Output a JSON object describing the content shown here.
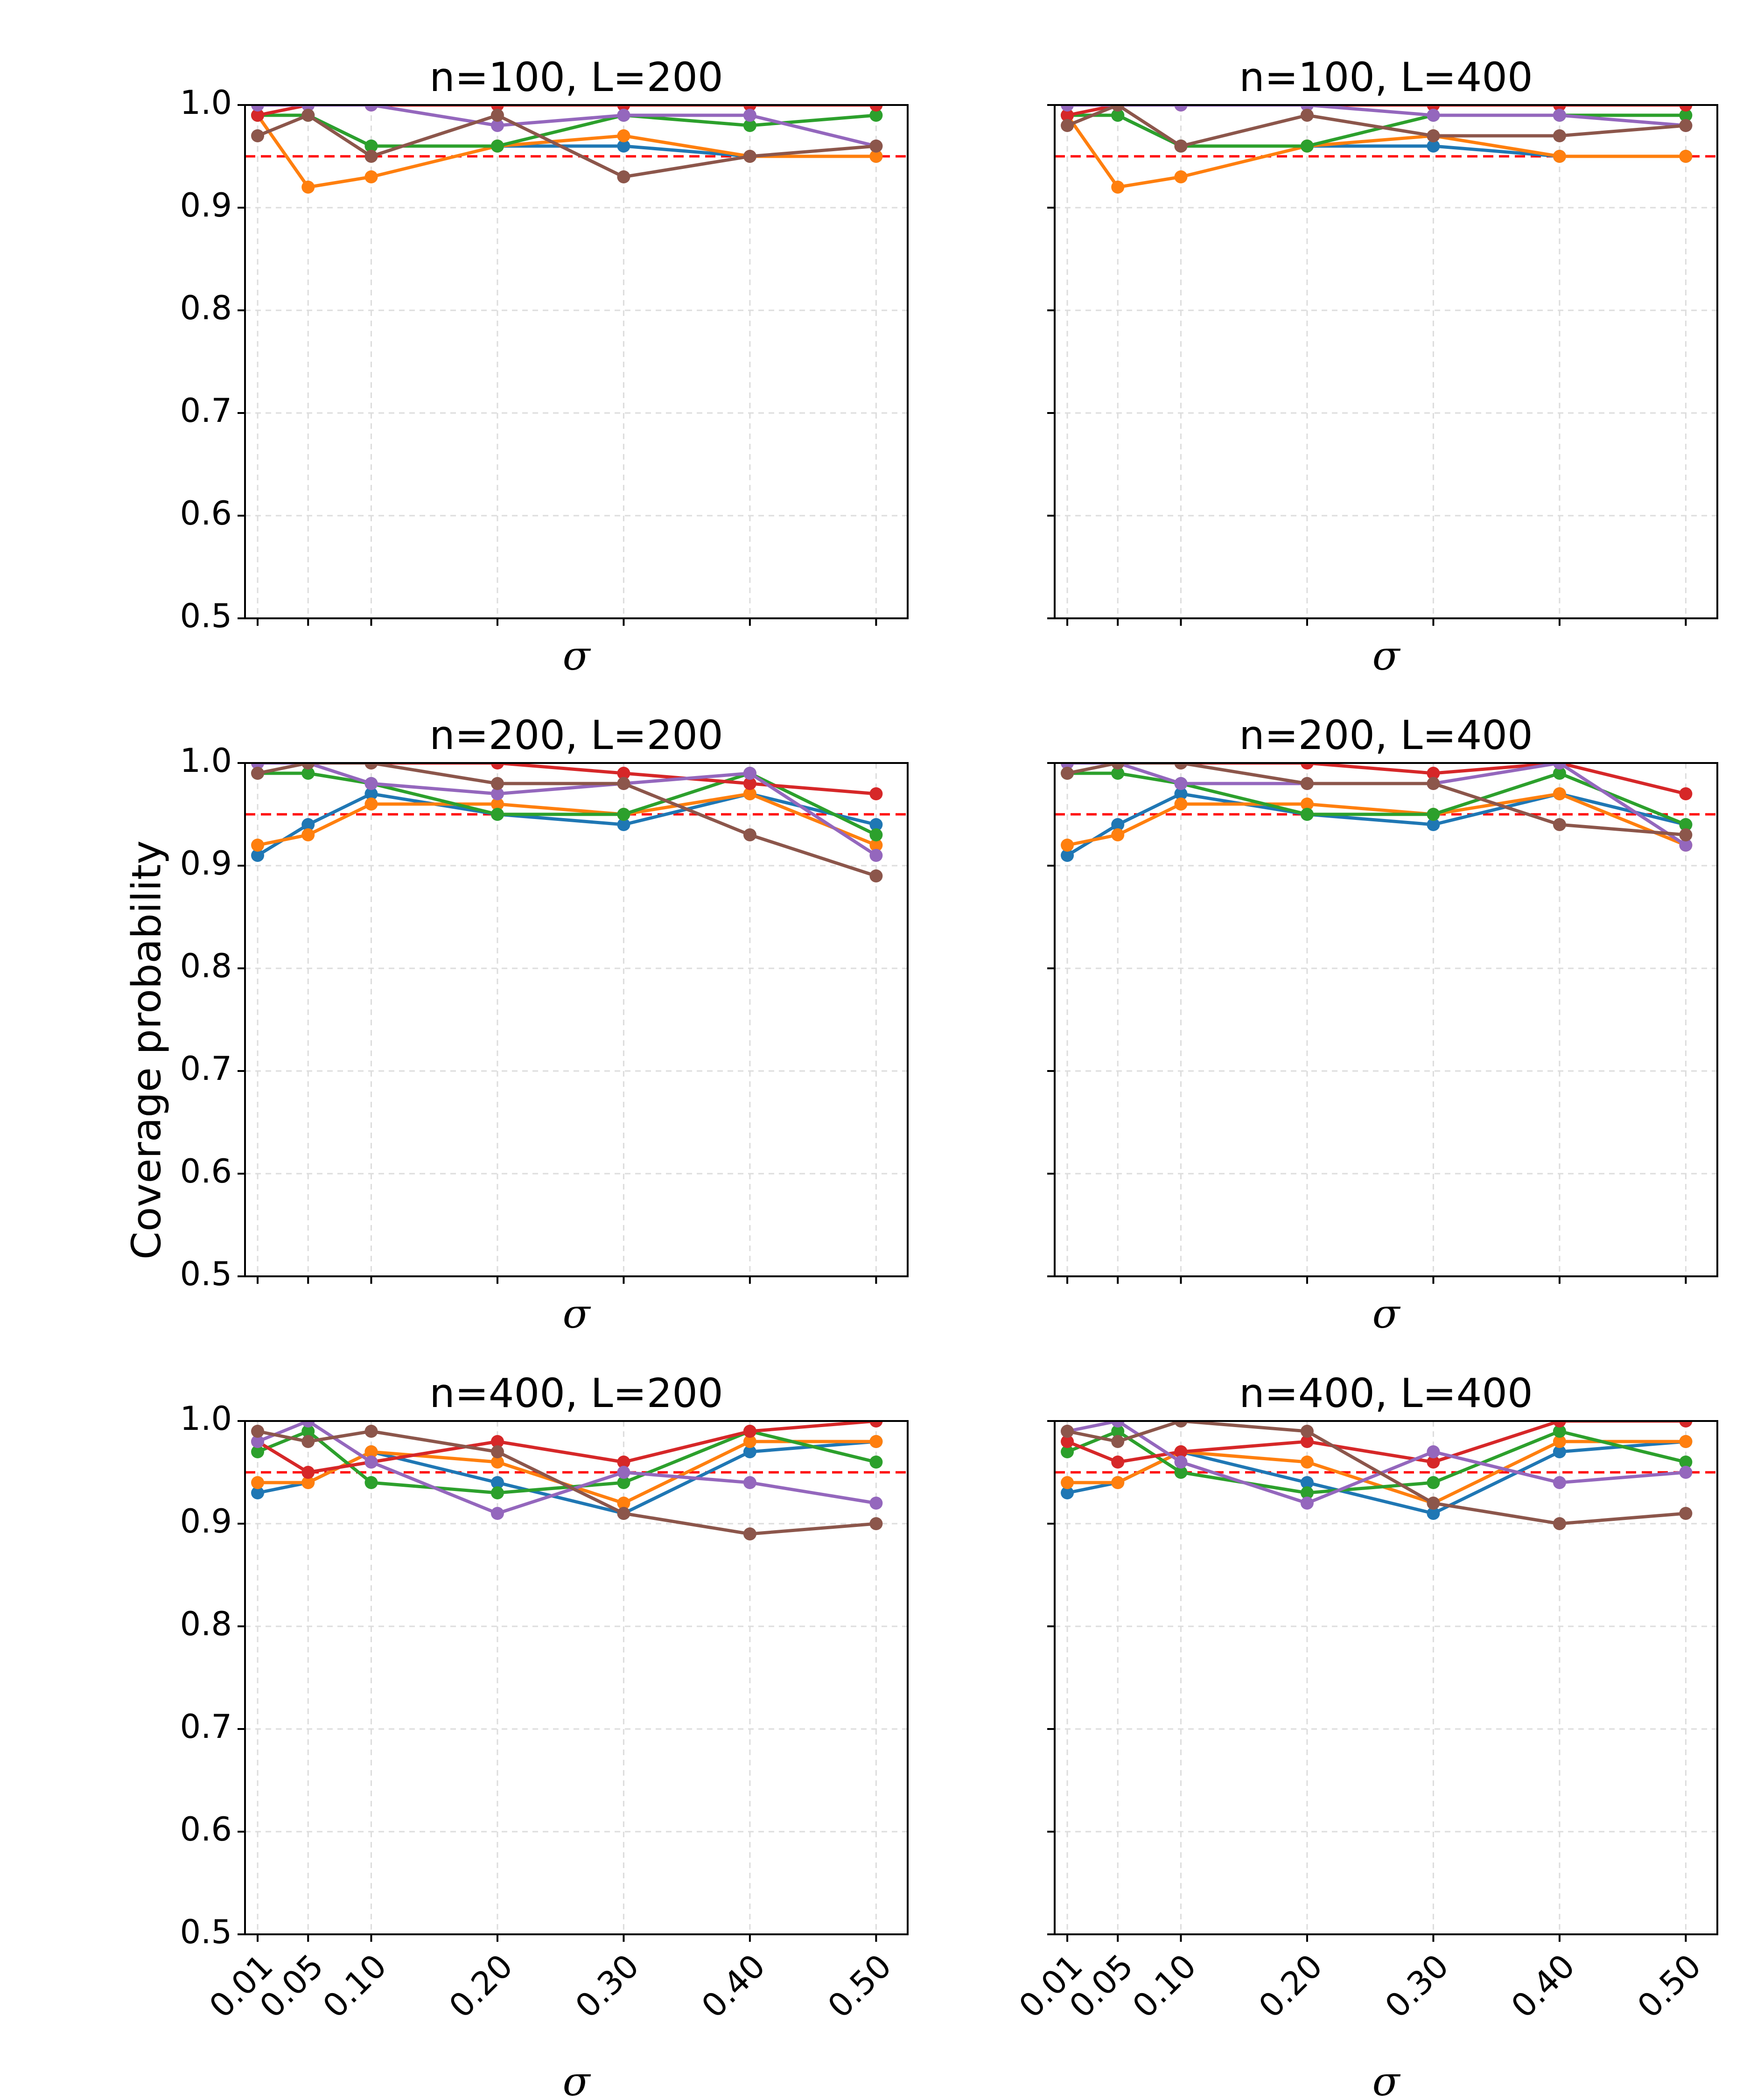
{
  "figure": {
    "ylabel": "Coverage probability"
  },
  "chart_data": [
    {
      "type": "line",
      "title": "n=100, L=200",
      "xlabel": "σ",
      "ylim": [
        0.5,
        1.0
      ],
      "x": [
        0.01,
        0.05,
        0.1,
        0.2,
        0.3,
        0.4,
        0.5
      ],
      "x_tick_labels": [],
      "y_tick_labels": [
        "0.5",
        "0.6",
        "0.7",
        "0.8",
        "0.9",
        "1.0"
      ],
      "reference_line": 0.95,
      "grid": true,
      "series": [
        {
          "name": "series-1",
          "color": "#1f77b4",
          "values": [
            0.99,
            0.99,
            0.96,
            0.96,
            0.96,
            0.95,
            0.95
          ]
        },
        {
          "name": "series-2",
          "color": "#ff7f0e",
          "values": [
            0.99,
            0.92,
            0.93,
            0.96,
            0.97,
            0.95,
            0.95
          ]
        },
        {
          "name": "series-3",
          "color": "#2ca02c",
          "values": [
            0.99,
            0.99,
            0.96,
            0.96,
            0.99,
            0.98,
            0.99
          ]
        },
        {
          "name": "series-4",
          "color": "#d62728",
          "values": [
            0.99,
            1.0,
            1.0,
            1.0,
            1.0,
            1.0,
            1.0
          ]
        },
        {
          "name": "series-5",
          "color": "#9467bd",
          "values": [
            1.0,
            1.0,
            1.0,
            0.98,
            0.99,
            0.99,
            0.96
          ]
        },
        {
          "name": "series-6",
          "color": "#8c564b",
          "values": [
            0.97,
            0.99,
            0.95,
            0.99,
            0.93,
            0.95,
            0.96
          ]
        }
      ]
    },
    {
      "type": "line",
      "title": "n=100, L=400",
      "xlabel": "σ",
      "ylim": [
        0.5,
        1.0
      ],
      "x": [
        0.01,
        0.05,
        0.1,
        0.2,
        0.3,
        0.4,
        0.5
      ],
      "x_tick_labels": [],
      "y_tick_labels": [],
      "reference_line": 0.95,
      "grid": true,
      "series": [
        {
          "name": "series-1",
          "color": "#1f77b4",
          "values": [
            0.99,
            0.99,
            0.96,
            0.96,
            0.96,
            0.95,
            0.95
          ]
        },
        {
          "name": "series-2",
          "color": "#ff7f0e",
          "values": [
            0.99,
            0.92,
            0.93,
            0.96,
            0.97,
            0.95,
            0.95
          ]
        },
        {
          "name": "series-3",
          "color": "#2ca02c",
          "values": [
            0.99,
            0.99,
            0.96,
            0.96,
            0.99,
            0.99,
            0.99
          ]
        },
        {
          "name": "series-4",
          "color": "#d62728",
          "values": [
            0.99,
            1.0,
            1.0,
            1.0,
            1.0,
            1.0,
            1.0
          ]
        },
        {
          "name": "series-5",
          "color": "#9467bd",
          "values": [
            1.0,
            1.0,
            1.0,
            1.0,
            0.99,
            0.99,
            0.98
          ]
        },
        {
          "name": "series-6",
          "color": "#8c564b",
          "values": [
            0.98,
            1.0,
            0.96,
            0.99,
            0.97,
            0.97,
            0.98
          ]
        }
      ]
    },
    {
      "type": "line",
      "title": "n=200, L=200",
      "xlabel": "σ",
      "ylim": [
        0.5,
        1.0
      ],
      "x": [
        0.01,
        0.05,
        0.1,
        0.2,
        0.3,
        0.4,
        0.5
      ],
      "x_tick_labels": [],
      "y_tick_labels": [
        "0.5",
        "0.6",
        "0.7",
        "0.8",
        "0.9",
        "1.0"
      ],
      "reference_line": 0.95,
      "grid": true,
      "series": [
        {
          "name": "series-1",
          "color": "#1f77b4",
          "values": [
            0.91,
            0.94,
            0.97,
            0.95,
            0.94,
            0.97,
            0.94
          ]
        },
        {
          "name": "series-2",
          "color": "#ff7f0e",
          "values": [
            0.92,
            0.93,
            0.96,
            0.96,
            0.95,
            0.97,
            0.92
          ]
        },
        {
          "name": "series-3",
          "color": "#2ca02c",
          "values": [
            0.99,
            0.99,
            0.98,
            0.95,
            0.95,
            0.99,
            0.93
          ]
        },
        {
          "name": "series-4",
          "color": "#d62728",
          "values": [
            1.0,
            1.0,
            1.0,
            1.0,
            0.99,
            0.98,
            0.97
          ]
        },
        {
          "name": "series-5",
          "color": "#9467bd",
          "values": [
            1.0,
            1.0,
            0.98,
            0.97,
            0.98,
            0.99,
            0.91
          ]
        },
        {
          "name": "series-6",
          "color": "#8c564b",
          "values": [
            0.99,
            1.0,
            1.0,
            0.98,
            0.98,
            0.93,
            0.89
          ]
        }
      ]
    },
    {
      "type": "line",
      "title": "n=200, L=400",
      "xlabel": "σ",
      "ylim": [
        0.5,
        1.0
      ],
      "x": [
        0.01,
        0.05,
        0.1,
        0.2,
        0.3,
        0.4,
        0.5
      ],
      "x_tick_labels": [],
      "y_tick_labels": [],
      "reference_line": 0.95,
      "grid": true,
      "series": [
        {
          "name": "series-1",
          "color": "#1f77b4",
          "values": [
            0.91,
            0.94,
            0.97,
            0.95,
            0.94,
            0.97,
            0.94
          ]
        },
        {
          "name": "series-2",
          "color": "#ff7f0e",
          "values": [
            0.92,
            0.93,
            0.96,
            0.96,
            0.95,
            0.97,
            0.92
          ]
        },
        {
          "name": "series-3",
          "color": "#2ca02c",
          "values": [
            0.99,
            0.99,
            0.98,
            0.95,
            0.95,
            0.99,
            0.94
          ]
        },
        {
          "name": "series-4",
          "color": "#d62728",
          "values": [
            1.0,
            1.0,
            1.0,
            1.0,
            0.99,
            1.0,
            0.97
          ]
        },
        {
          "name": "series-5",
          "color": "#9467bd",
          "values": [
            1.0,
            1.0,
            0.98,
            0.98,
            0.98,
            1.0,
            0.92
          ]
        },
        {
          "name": "series-6",
          "color": "#8c564b",
          "values": [
            0.99,
            1.0,
            1.0,
            0.98,
            0.98,
            0.94,
            0.93
          ]
        }
      ]
    },
    {
      "type": "line",
      "title": "n=400, L=200",
      "xlabel": "σ",
      "ylim": [
        0.5,
        1.0
      ],
      "x": [
        0.01,
        0.05,
        0.1,
        0.2,
        0.3,
        0.4,
        0.5
      ],
      "x_tick_labels": [
        "0.01",
        "0.05",
        "0.10",
        "0.20",
        "0.30",
        "0.40",
        "0.50"
      ],
      "y_tick_labels": [
        "0.5",
        "0.6",
        "0.7",
        "0.8",
        "0.9",
        "1.0"
      ],
      "reference_line": 0.95,
      "grid": true,
      "series": [
        {
          "name": "series-1",
          "color": "#1f77b4",
          "values": [
            0.93,
            0.94,
            0.97,
            0.94,
            0.91,
            0.97,
            0.98
          ]
        },
        {
          "name": "series-2",
          "color": "#ff7f0e",
          "values": [
            0.94,
            0.94,
            0.97,
            0.96,
            0.92,
            0.98,
            0.98
          ]
        },
        {
          "name": "series-3",
          "color": "#2ca02c",
          "values": [
            0.97,
            0.99,
            0.94,
            0.93,
            0.94,
            0.99,
            0.96
          ]
        },
        {
          "name": "series-4",
          "color": "#d62728",
          "values": [
            0.98,
            0.95,
            0.96,
            0.98,
            0.96,
            0.99,
            1.0
          ]
        },
        {
          "name": "series-5",
          "color": "#9467bd",
          "values": [
            0.98,
            1.0,
            0.96,
            0.91,
            0.95,
            0.94,
            0.92
          ]
        },
        {
          "name": "series-6",
          "color": "#8c564b",
          "values": [
            0.99,
            0.98,
            0.99,
            0.97,
            0.91,
            0.89,
            0.9
          ]
        }
      ]
    },
    {
      "type": "line",
      "title": "n=400, L=400",
      "xlabel": "σ",
      "ylim": [
        0.5,
        1.0
      ],
      "x": [
        0.01,
        0.05,
        0.1,
        0.2,
        0.3,
        0.4,
        0.5
      ],
      "x_tick_labels": [
        "0.01",
        "0.05",
        "0.10",
        "0.20",
        "0.30",
        "0.40",
        "0.50"
      ],
      "y_tick_labels": [],
      "reference_line": 0.95,
      "grid": true,
      "series": [
        {
          "name": "series-1",
          "color": "#1f77b4",
          "values": [
            0.93,
            0.94,
            0.97,
            0.94,
            0.91,
            0.97,
            0.98
          ]
        },
        {
          "name": "series-2",
          "color": "#ff7f0e",
          "values": [
            0.94,
            0.94,
            0.97,
            0.96,
            0.92,
            0.98,
            0.98
          ]
        },
        {
          "name": "series-3",
          "color": "#2ca02c",
          "values": [
            0.97,
            0.99,
            0.95,
            0.93,
            0.94,
            0.99,
            0.96
          ]
        },
        {
          "name": "series-4",
          "color": "#d62728",
          "values": [
            0.98,
            0.96,
            0.97,
            0.98,
            0.96,
            1.0,
            1.0
          ]
        },
        {
          "name": "series-5",
          "color": "#9467bd",
          "values": [
            0.99,
            1.0,
            0.96,
            0.92,
            0.97,
            0.94,
            0.95
          ]
        },
        {
          "name": "series-6",
          "color": "#8c564b",
          "values": [
            0.99,
            0.98,
            1.0,
            0.99,
            0.92,
            0.9,
            0.91
          ]
        }
      ]
    }
  ]
}
